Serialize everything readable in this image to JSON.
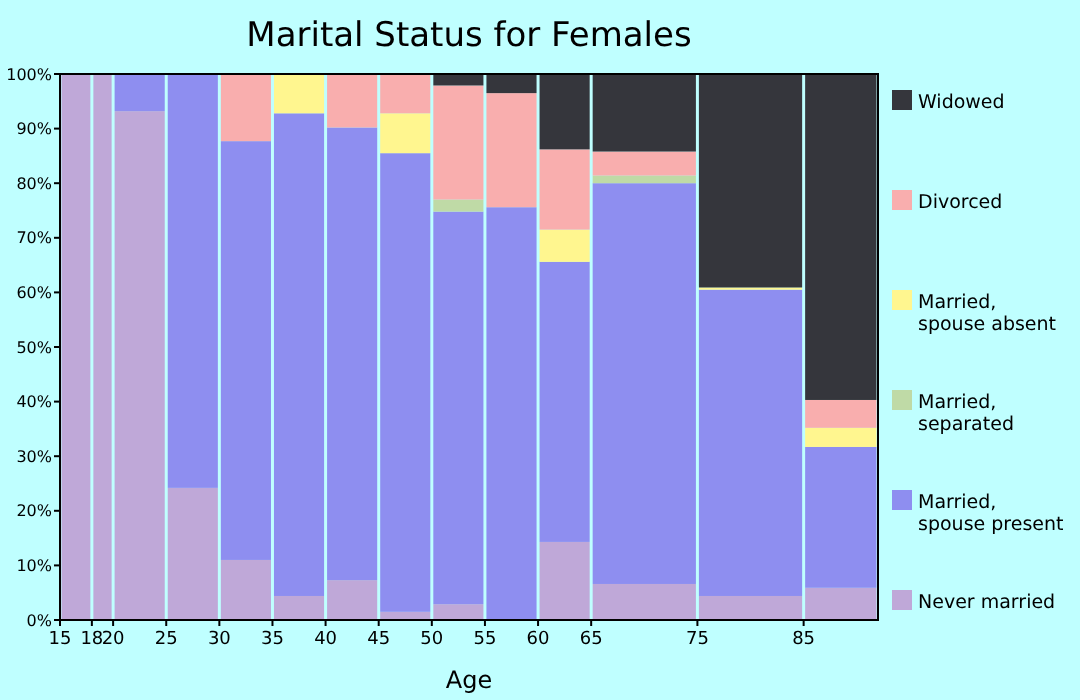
{
  "chart_data": {
    "type": "bar",
    "stacked": true,
    "title": "Marital Status for Females",
    "xlabel": "Age",
    "x": [
      16.5,
      19,
      22.5,
      27.5,
      32.5,
      37.5,
      42.5,
      47.5,
      52.5,
      57.5,
      62.5,
      70,
      80,
      88.5
    ],
    "xlim": [
      15,
      92
    ],
    "xticks": [
      15,
      18,
      20,
      25,
      30,
      35,
      40,
      45,
      50,
      55,
      60,
      65,
      75,
      85
    ],
    "ylim": [
      0,
      100
    ],
    "yticks": [
      {
        "value": 0,
        "label": "0%"
      },
      {
        "value": 10,
        "label": "10%"
      },
      {
        "value": 20,
        "label": "20%"
      },
      {
        "value": 30,
        "label": "30%"
      },
      {
        "value": 40,
        "label": "40%"
      },
      {
        "value": 50,
        "label": "50%"
      },
      {
        "value": 60,
        "label": "60%"
      },
      {
        "value": 70,
        "label": "70%"
      },
      {
        "value": 80,
        "label": "80%"
      },
      {
        "value": 90,
        "label": "90%"
      },
      {
        "value": 100,
        "label": "100%"
      }
    ],
    "grid": false,
    "legend": "right",
    "series": [
      {
        "name": "Never married",
        "color": "#bfa8d8",
        "values": [
          100,
          100,
          93.2,
          24.2,
          11.0,
          4.4,
          7.3,
          1.5,
          2.9,
          0,
          14.3,
          6.6,
          4.4,
          5.9
        ]
      },
      {
        "name": "Married, spouse present",
        "color": "#8e8ef0",
        "values": [
          0,
          0,
          6.8,
          75.8,
          76.7,
          88.4,
          82.9,
          84.0,
          71.9,
          75.6,
          51.3,
          73.4,
          56.1,
          25.8
        ]
      },
      {
        "name": "Married, separated",
        "color": "#bfdaa6",
        "values": [
          0,
          0,
          0,
          0,
          0,
          0,
          0,
          0,
          2.2,
          0,
          0,
          1.4,
          0,
          0
        ]
      },
      {
        "name": "Married, spouse absent",
        "color": "#fff68f",
        "values": [
          0,
          0,
          0,
          0,
          0,
          7.2,
          0,
          7.3,
          0,
          0,
          5.9,
          0,
          0.4,
          3.5
        ]
      },
      {
        "name": "Divorced",
        "color": "#f9aeae",
        "values": [
          0,
          0,
          0,
          0,
          12.3,
          0,
          9.8,
          7.2,
          20.9,
          20.9,
          14.7,
          4.4,
          0,
          5.1
        ]
      },
      {
        "name": "Widowed",
        "color": "#35363c",
        "values": [
          0,
          0,
          0,
          0,
          0,
          0,
          0,
          0,
          2.1,
          3.5,
          13.8,
          14.2,
          39.1,
          59.7
        ]
      }
    ]
  }
}
